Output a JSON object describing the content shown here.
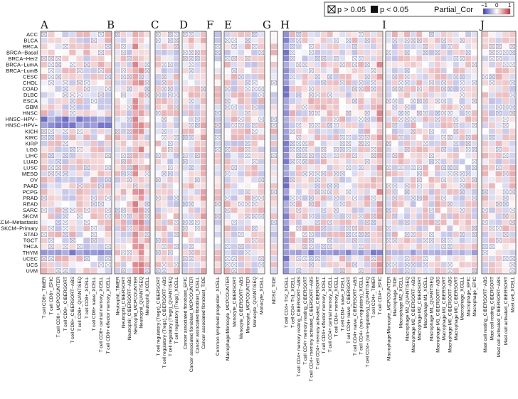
{
  "chart_data": {
    "type": "heatmap",
    "title": "",
    "legend": {
      "ns_label": "p > 0.05",
      "sig_label": "p < 0.05",
      "color_title": "Partial_Cor",
      "ticks": [
        "−1",
        "0",
        "1"
      ],
      "colors": {
        "negative": "#3b3bb0",
        "zero": "#ffffff",
        "positive": "#c0303a"
      }
    },
    "rows": [
      "ACC",
      "BLCA",
      "BRCA",
      "BRCA−Basal",
      "BRCA−Her2",
      "BRCA−LumA",
      "BRCA−LumB",
      "CESC",
      "CHOL",
      "COAD",
      "DLBC",
      "ESCA",
      "GBM",
      "HNSC",
      "HNSC−HPV−",
      "HNSC−HPV+",
      "KICH",
      "KIRC",
      "KIRP",
      "LGG",
      "LIHC",
      "LUAD",
      "LUSC",
      "MESO",
      "OV",
      "PAAD",
      "PCPG",
      "PRAD",
      "READ",
      "SARC",
      "SKCM",
      "SKCM−Metastasis",
      "SKCM−Primary",
      "STAD",
      "TGCT",
      "THCA",
      "THYM",
      "UCEC",
      "UCS",
      "UVM"
    ],
    "panels": [
      {
        "label": "A",
        "columns": [
          "T cell CD8+_TIMER",
          "T cell CD8+_EPIC",
          "T cell CD8+_MCPCOUNTER",
          "T cell CD8+_CIBERSORT",
          "T cell CD8+_CIBERSORT−ABS",
          "T cell CD8+_QUANTISEQ",
          "T cell CD8+_XCELL",
          "T cell CD8+ naive_XCELL",
          "T cell CD8+ central memory_XCELL",
          "T cell CD8+ effector memory_XCELL"
        ]
      },
      {
        "label": "B",
        "columns": [
          "Neutrophil_TIMER",
          "Neutrophil_CIBERSORT",
          "Neutrophil_CIBERSORT−ABS",
          "Neutrophil_MCPCOUNTER",
          "Neutrophil_QUANTISEQ",
          "Neutrophil_XCELL"
        ]
      },
      {
        "label": "C",
        "columns": [
          "T cell regulatory (Tregs)_CIBERSORT",
          "T cell regulatory (Tregs)_CIBERSORT−ABS",
          "T cell regulatory (Tregs)_QUANTISEQ",
          "T cell regulatory (Tregs)_XCELL"
        ]
      },
      {
        "label": "D",
        "columns": [
          "Cancer associated fibroblast_EPIC",
          "Cancer associated fibroblast_MCPCOUNTER",
          "Cancer associated fibroblast_XCELL",
          "Cancer associated fibroblast_TIDE"
        ]
      },
      {
        "label": "F",
        "columns": [
          "Common lymphoid progenitor_XCELL"
        ]
      },
      {
        "label": "E",
        "columns": [
          "Macrophage/Monocyte_MCPCOUNTER",
          "Monocyte_CIBERSORT",
          "Monocyte_CIBERSORT−ABS",
          "Monocyte_MCPCOUNTER",
          "Monocyte_QUANTISEQ",
          "Monocyte_XCELL"
        ]
      },
      {
        "label": "G",
        "columns": [
          "MDSC_TIDE"
        ]
      },
      {
        "label": "H",
        "columns": [
          "T cell CD4+ Th2_XCELL",
          "T cell CD4+ Th1_XCELL",
          "T cell CD4+ memory resting_CIBERSORT−ABS",
          "T cell CD4+ memory resting_CIBERSORT",
          "T cell CD4+ memory activated_CIBERSORT−ABS",
          "T cell CD4+ memory activated_CIBERSORT",
          "T cell CD4+ effector memory_XCELL",
          "T cell CD4+ central memory_XCELL",
          "T cell CD4+ memory_XCELL",
          "T cell CD4+ naive_XCELL",
          "T cell CD4+ naive_CIBERSORT",
          "T cell CD4+ naive_CIBERSORT−ABS",
          "T cell CD4+ (non−regulatory)_XCELL",
          "T cell CD4+ (non−regulatory)_QUANTISEQ",
          "T cell CD4+_TIMER",
          "T cell CD4+_EPIC"
        ]
      },
      {
        "label": "I",
        "columns": [
          "Macrophage/Monocyte_MCPCOUNTER",
          "Macrophage_TIDE",
          "Macrophage M2_XCELL",
          "Macrophage M2_QUANTISEQ",
          "Macrophage M2_CIBERSORT−ABS",
          "Macrophage M2_CIBERSORT",
          "Macrophage M1_XCELL",
          "Macrophage M1_QUANTISEQ",
          "Macrophage M1_CIBERSORT−ABS",
          "Macrophage M1_CIBERSORT",
          "Macrophage M0_CIBERSORT−ABS",
          "Macrophage M0_CIBERSORT",
          "Macrophage_XCELL",
          "Macrophage_EPIC",
          "Macrophage_EPIC"
        ]
      },
      {
        "label": "J",
        "columns": [
          "Mast cell resting_CIBERSORT−ABS",
          "Mast cell resting_CIBERSORT",
          "Mast cell activated_CIBERSORT−ABS",
          "Mast cell activated_CIBERSORT",
          "Mast cell_XCELL"
        ]
      }
    ],
    "values_note": "Values are approximate partial correlations read visually from cell colours; cells marked ns (p > 0.05) are drawn with a crossed box."
  }
}
